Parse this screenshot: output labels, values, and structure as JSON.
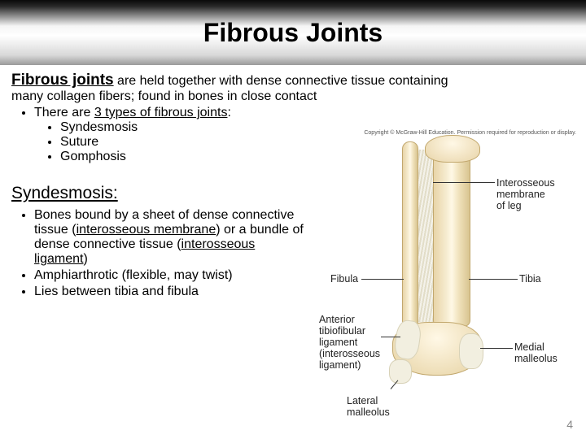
{
  "title": "Fibrous Joints",
  "intro": {
    "lead": "Fibrous joints",
    "rest": " are held together with dense connective tissue containing",
    "cont": "many collagen fibers; found in bones in close contact"
  },
  "types": {
    "heading_html": "There are <span class=\"u\">3 types of fibrous joints</span>:",
    "items": [
      "Syndesmosis",
      "Suture",
      "Gomphosis"
    ]
  },
  "section": "Syndesmosis:",
  "syn_bullets": [
    "Bones bound by a sheet  of dense connective tissue (<span class=\"u\">interosseous membrane</span>) or a bundle of dense connective tissue (<span class=\"u\">interosseous ligament</span>)",
    "Amphiarthrotic (flexible, may twist)",
    "Lies between tibia and fibula"
  ],
  "diagram": {
    "copyright": "Copyright © McGraw-Hill Education. Permission required for reproduction or display.",
    "labels": {
      "interosseous": "Interosseous\nmembrane\nof leg",
      "fibula": "Fibula",
      "tibia": "Tibia",
      "atf": "Anterior\ntibiofibular\nligament\n(interosseous\nligament)",
      "medial": "Medial\nmalleolus",
      "lateral": "Lateral\nmalleolus"
    }
  },
  "page_number": "4",
  "colors": {
    "bone_light": "#fff8e6",
    "bone_mid": "#e8d4a8",
    "bone_border": "#c2a86e",
    "membrane_a": "#f4f2ea",
    "membrane_b": "#e2ddc8",
    "page_num": "#888888"
  }
}
